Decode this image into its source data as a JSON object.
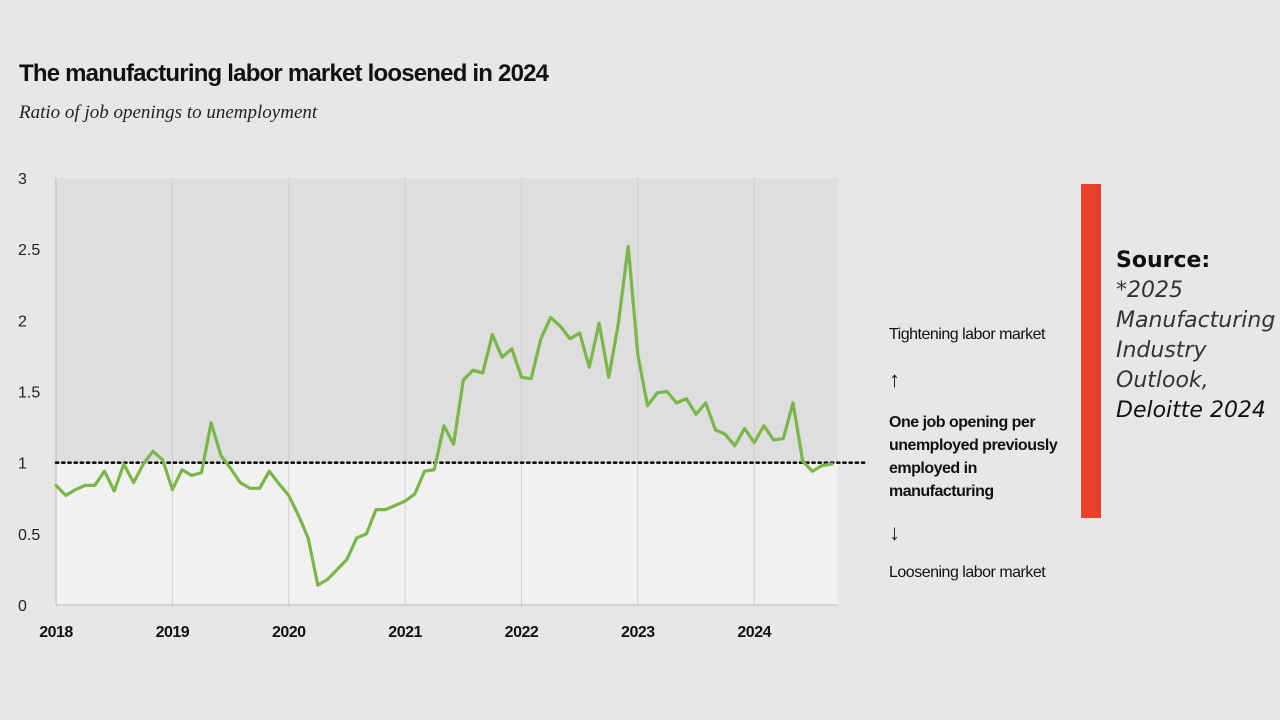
{
  "chart_data": {
    "type": "line",
    "title": "The manufacturing labor market loosened in 2024",
    "subtitle": "Ratio of job openings to unemployment",
    "xlabel": "",
    "ylabel": "",
    "xlim": [
      2018.0,
      2024.72
    ],
    "ylim": [
      0,
      3
    ],
    "yticks": [
      "0",
      "0.5",
      "1",
      "1.5",
      "2",
      "2.5",
      "3"
    ],
    "xticks": [
      "2018",
      "2019",
      "2020",
      "2021",
      "2022",
      "2023",
      "2024"
    ],
    "reference_line": {
      "value": 1.0,
      "style": "dotted"
    },
    "grid": true,
    "series": [
      {
        "name": "Job openings to unemployment ratio",
        "color": "#7ab648",
        "x": [
          2018.0,
          2018.083,
          2018.167,
          2018.25,
          2018.333,
          2018.417,
          2018.5,
          2018.583,
          2018.667,
          2018.75,
          2018.833,
          2018.917,
          2019.0,
          2019.083,
          2019.167,
          2019.25,
          2019.333,
          2019.417,
          2019.5,
          2019.583,
          2019.667,
          2019.75,
          2019.833,
          2019.917,
          2020.0,
          2020.083,
          2020.167,
          2020.25,
          2020.333,
          2020.417,
          2020.5,
          2020.583,
          2020.667,
          2020.75,
          2020.833,
          2020.917,
          2021.0,
          2021.083,
          2021.167,
          2021.25,
          2021.333,
          2021.417,
          2021.5,
          2021.583,
          2021.667,
          2021.75,
          2021.833,
          2021.917,
          2022.0,
          2022.083,
          2022.167,
          2022.25,
          2022.333,
          2022.417,
          2022.5,
          2022.583,
          2022.667,
          2022.75,
          2022.833,
          2022.917,
          2023.0,
          2023.083,
          2023.167,
          2023.25,
          2023.333,
          2023.417,
          2023.5,
          2023.583,
          2023.667,
          2023.75,
          2023.833,
          2023.917,
          2024.0,
          2024.083,
          2024.167,
          2024.25,
          2024.333,
          2024.417,
          2024.5,
          2024.583,
          2024.667
        ],
        "values": [
          0.84,
          0.77,
          0.81,
          0.84,
          0.84,
          0.94,
          0.8,
          0.99,
          0.86,
          0.99,
          1.08,
          1.02,
          0.81,
          0.95,
          0.91,
          0.93,
          1.28,
          1.05,
          0.96,
          0.86,
          0.82,
          0.82,
          0.94,
          0.85,
          0.77,
          0.63,
          0.47,
          0.14,
          0.18,
          0.25,
          0.32,
          0.47,
          0.5,
          0.67,
          0.67,
          0.7,
          0.73,
          0.78,
          0.94,
          0.95,
          1.26,
          1.13,
          1.58,
          1.65,
          1.63,
          1.9,
          1.74,
          1.8,
          1.6,
          1.59,
          1.87,
          2.02,
          1.96,
          1.87,
          1.91,
          1.67,
          1.98,
          1.6,
          1.98,
          2.52,
          1.76,
          1.4,
          1.49,
          1.5,
          1.42,
          1.45,
          1.34,
          1.42,
          1.23,
          1.2,
          1.12,
          1.24,
          1.14,
          1.26,
          1.16,
          1.17,
          1.42,
          1.01,
          0.94,
          0.98,
          0.99
        ]
      }
    ]
  },
  "annotations": {
    "tightening": "Tightening labor market",
    "up_arrow": "↑",
    "one_job": "One job opening per unemployed previously employed in manufacturing",
    "down_arrow": "↓",
    "loosening": "Loosening labor market"
  },
  "source": {
    "label": "Source:",
    "publication": "*2025 Manufacturing Industry Outlook,",
    "organization": "Deloitte 2024"
  },
  "colors": {
    "line": "#7ab648",
    "source_bar": "#e8402b",
    "upper_band": "#dedede",
    "lower_band": "#f1f1f1"
  }
}
